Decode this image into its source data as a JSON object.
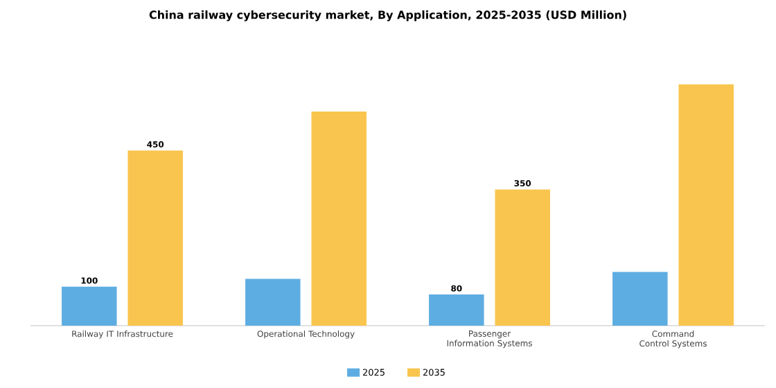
{
  "chart_data": {
    "type": "bar",
    "title": "China railway cybersecurity market, By Application, 2025-2035 (USD Million)",
    "categories": [
      "Railway IT Infrastructure",
      "Operational Technology",
      "Passenger Information Systems",
      "Command Control Systems"
    ],
    "series": [
      {
        "name": "2025",
        "color": "#5dade2",
        "values": [
          100,
          120,
          80,
          138
        ],
        "value_labels": [
          "100",
          null,
          "80",
          null
        ]
      },
      {
        "name": "2035",
        "color": "#f9c54e",
        "values": [
          450,
          550,
          350,
          620
        ],
        "value_labels": [
          "450",
          null,
          "350",
          null
        ]
      }
    ],
    "legend": "bottom"
  }
}
